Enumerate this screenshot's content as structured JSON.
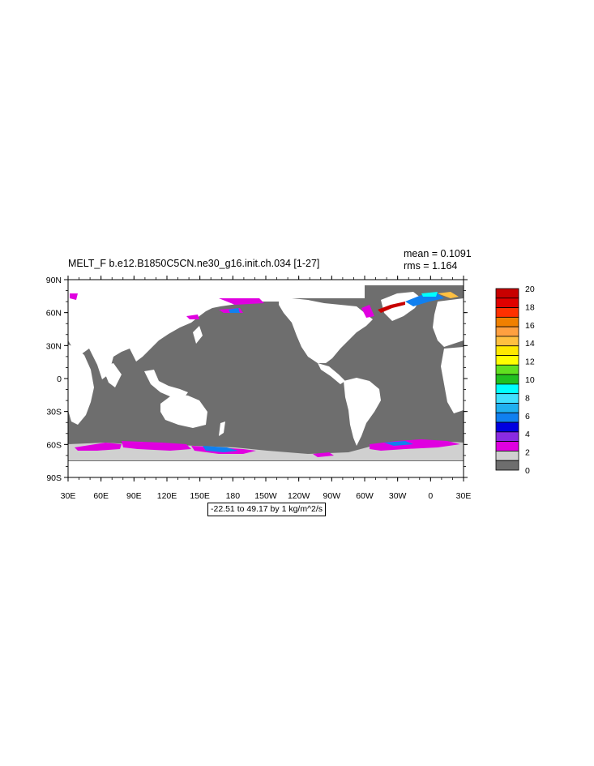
{
  "title": "MELT_F b.e12.B1850C5CN.ne30_g16.init.ch.034 [1-27]",
  "stats": {
    "mean": "mean = 0.1091",
    "rms": "rms = 1.164"
  },
  "range_label": "-22.51 to 49.17 by 1 kg/m^2/s",
  "map_data": {
    "type": "heatmap",
    "projection": "cylindrical-equidistant",
    "lat_labels": [
      "90N",
      "60N",
      "30N",
      "0",
      "30S",
      "60S",
      "90S"
    ],
    "lon_labels": [
      "30E",
      "60E",
      "90E",
      "120E",
      "150E",
      "180",
      "150W",
      "120W",
      "90W",
      "60W",
      "30W",
      "0",
      "30E"
    ],
    "lat_range": [
      -90,
      90
    ],
    "lon_range": [
      30,
      390
    ],
    "land_color": "#ffffff",
    "ocean_zero_color": "#6e6e6e"
  },
  "colorbar": {
    "labels": [
      "20",
      "18",
      "16",
      "14",
      "12",
      "10",
      "8",
      "6",
      "4",
      "2",
      "0"
    ],
    "colors": [
      "#c80000",
      "#e00000",
      "#ff3000",
      "#f08000",
      "#ffa040",
      "#ffc040",
      "#ffe800",
      "#ffff00",
      "#60e020",
      "#20c020",
      "#00ffff",
      "#40e0ff",
      "#20b0f0",
      "#1080f0",
      "#0000e0",
      "#8a2be2",
      "#e000e0",
      "#d0d0d0",
      "#6e6e6e"
    ]
  }
}
